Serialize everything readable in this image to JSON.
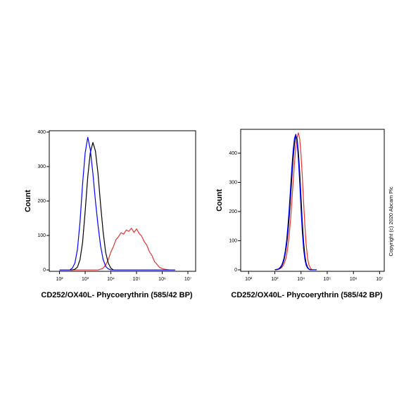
{
  "chart_data": [
    {
      "type": "line",
      "xscale": "log",
      "ylabel": "Count",
      "xlabel": "CD252/OX40L- Phycoerythrin  (585/42 BP)",
      "xlim": [
        40,
        20000000
      ],
      "ylim": [
        -4,
        404
      ],
      "xticks": [
        {
          "value": 100,
          "label": "10²"
        },
        {
          "value": 1000,
          "label": "10³"
        },
        {
          "value": 10000,
          "label": "10⁴"
        },
        {
          "value": 100000,
          "label": "10⁵"
        },
        {
          "value": 1000000,
          "label": "10⁶"
        },
        {
          "value": 10000000,
          "label": "10⁷"
        }
      ],
      "yticks": [
        0,
        100,
        200,
        300,
        400
      ],
      "x": [
        100,
        126,
        158,
        200,
        251,
        316,
        398,
        501,
        631,
        794,
        1000,
        1260,
        1580,
        2000,
        2510,
        3160,
        3980,
        5010,
        6310,
        7940,
        10000,
        12600,
        15800,
        20000,
        25100,
        31600,
        39800,
        50100,
        63100,
        79400,
        100000,
        126000,
        158000,
        200000,
        251000,
        316000,
        398000,
        501000,
        631000,
        794000,
        1000000,
        1260000,
        1580000,
        2000000,
        2510000,
        3160000
      ],
      "series": [
        {
          "color": "#e8312f",
          "values": [
            0,
            0,
            0,
            0,
            0,
            0,
            0,
            0,
            0,
            0,
            0,
            0,
            0,
            0,
            0,
            0,
            2,
            5,
            15,
            30,
            52,
            68,
            88,
            97,
            108,
            104,
            116,
            112,
            121,
            109,
            119,
            106,
            98,
            82,
            72,
            53,
            42,
            24,
            16,
            7,
            4,
            2,
            1,
            0,
            0,
            0
          ]
        },
        {
          "color": "#000000",
          "values": [
            0,
            0,
            0,
            0,
            0,
            0,
            2,
            8,
            30,
            80,
            170,
            270,
            340,
            370,
            345,
            280,
            190,
            110,
            50,
            20,
            5,
            0,
            0,
            0,
            0,
            0,
            0,
            0,
            0,
            0,
            0,
            0,
            0,
            0,
            0,
            0,
            0,
            0,
            0,
            0,
            0,
            0,
            0,
            0,
            0,
            0
          ]
        },
        {
          "color": "#0000ff",
          "values": [
            0,
            0,
            0,
            0,
            0,
            5,
            20,
            60,
            140,
            250,
            340,
            385,
            350,
            280,
            200,
            130,
            70,
            30,
            10,
            3,
            0,
            0,
            0,
            0,
            0,
            0,
            0,
            0,
            0,
            0,
            0,
            0,
            0,
            0,
            0,
            0,
            0,
            0,
            0,
            0,
            0,
            0,
            0,
            0,
            0,
            0
          ]
        }
      ]
    },
    {
      "type": "line",
      "xscale": "log",
      "ylabel": "Count",
      "xlabel": "CD252/OX40L- Phycoerythrin  (585/42 BP)",
      "annotation": "Copyright (c) 2020 Abcam Plc",
      "xlim": [
        50,
        15000000
      ],
      "ylim": [
        -5,
        482
      ],
      "xticks": [
        {
          "value": 100,
          "label": "10²"
        },
        {
          "value": 1000,
          "label": "10³"
        },
        {
          "value": 10000,
          "label": "10⁴"
        },
        {
          "value": 100000,
          "label": "10⁵"
        },
        {
          "value": 1000000,
          "label": "10⁶"
        },
        {
          "value": 10000000,
          "label": "10⁷"
        }
      ],
      "yticks": [
        0,
        100,
        200,
        300,
        400
      ],
      "x": [
        1000,
        1120,
        1260,
        1410,
        1580,
        1780,
        2000,
        2240,
        2510,
        2820,
        3160,
        3550,
        3980,
        4470,
        5010,
        5620,
        6310,
        7080,
        7940,
        8910,
        10000,
        11200,
        12600,
        14100,
        15800,
        17800,
        20000,
        22400,
        25100,
        28200,
        31600,
        35500,
        39800
      ],
      "series": [
        {
          "color": "#e8312f",
          "values": [
            0,
            0,
            1,
            2,
            4,
            7,
            12,
            20,
            32,
            50,
            80,
            120,
            170,
            235,
            300,
            365,
            420,
            455,
            470,
            450,
            395,
            320,
            230,
            150,
            85,
            40,
            18,
            7,
            2,
            0,
            0,
            0,
            0
          ]
        },
        {
          "color": "#000000",
          "values": [
            0,
            1,
            1,
            3,
            6,
            11,
            20,
            33,
            55,
            85,
            125,
            180,
            245,
            315,
            380,
            430,
            458,
            450,
            405,
            335,
            250,
            165,
            95,
            48,
            22,
            9,
            3,
            1,
            0,
            0,
            0,
            0,
            0
          ]
        },
        {
          "color": "#0000ff",
          "values": [
            0,
            1,
            2,
            4,
            8,
            14,
            25,
            40,
            65,
            100,
            150,
            210,
            280,
            350,
            410,
            450,
            465,
            440,
            380,
            300,
            210,
            130,
            70,
            35,
            15,
            6,
            2,
            0,
            0,
            0,
            0,
            0,
            0
          ]
        }
      ]
    }
  ]
}
